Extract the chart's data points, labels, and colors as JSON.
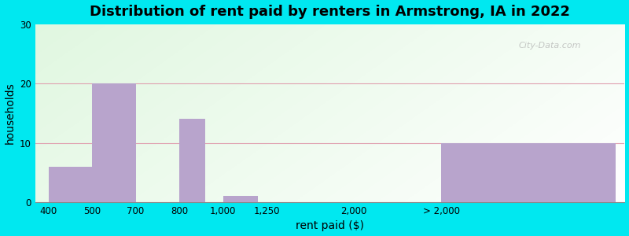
{
  "title": "Distribution of rent paid by renters in Armstrong, IA in 2022",
  "xlabel": "rent paid ($)",
  "ylabel": "households",
  "tick_labels": [
    "400",
    "500",
    "700",
    "800",
    "1,000",
    "1,250",
    "2,000",
    "> 2,000"
  ],
  "values": [
    6,
    20,
    0,
    14,
    1,
    0,
    0,
    10
  ],
  "bar_color": "#b8a4cc",
  "ylim": [
    0,
    30
  ],
  "yticks": [
    0,
    10,
    20,
    30
  ],
  "background_outer": "#00e8f0",
  "title_fontsize": 13,
  "axis_label_fontsize": 10,
  "tick_fontsize": 8.5,
  "watermark": "City-Data.com",
  "grid_color": "#e0a0b0",
  "bg_colors": [
    "#c8e8c0",
    "#f4fff4"
  ],
  "bar_positions": [
    0,
    1,
    2,
    3,
    4,
    5,
    7,
    9
  ],
  "bar_widths": [
    1,
    1,
    0.5,
    0.6,
    0.8,
    0.8,
    1,
    4
  ],
  "xlim": [
    -0.3,
    13.2
  ]
}
